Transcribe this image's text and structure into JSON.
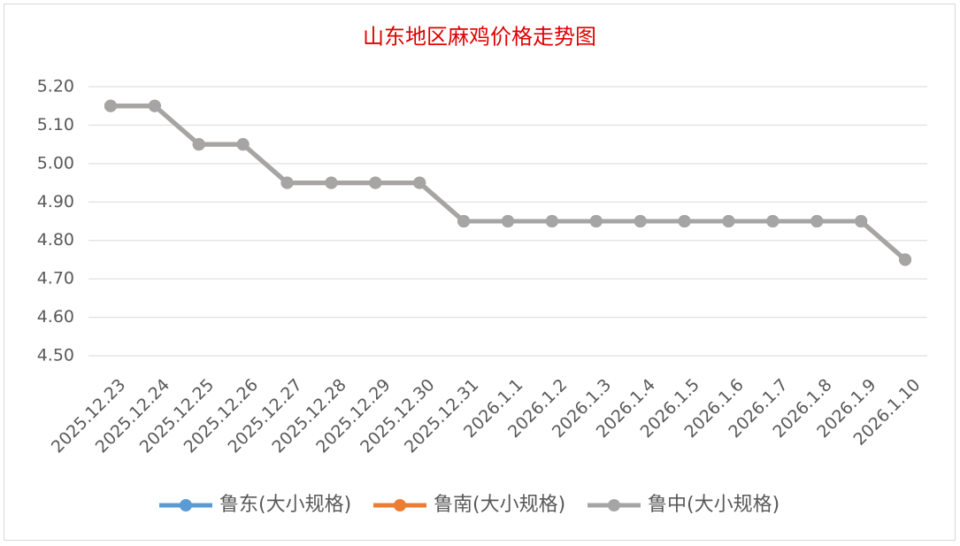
{
  "chart_data": {
    "type": "line",
    "title": "山东地区麻鸡价格走势图",
    "categories": [
      "2025.12.23",
      "2025.12.24",
      "2025.12.25",
      "2025.12.26",
      "2025.12.27",
      "2025.12.28",
      "2025.12.29",
      "2025.12.30",
      "2025.12.31",
      "2026.1.1",
      "2026.1.2",
      "2026.1.3",
      "2026.1.4",
      "2026.1.5",
      "2026.1.6",
      "2026.1.7",
      "2026.1.8",
      "2026.1.9",
      "2026.1.10"
    ],
    "series": [
      {
        "name": "鲁东(大小规格)",
        "color": "#5b9bd5",
        "values": [
          5.15,
          5.15,
          5.05,
          5.05,
          4.95,
          4.95,
          4.95,
          4.95,
          4.85,
          4.85,
          4.85,
          4.85,
          4.85,
          4.85,
          4.85,
          4.85,
          4.85,
          4.85,
          4.75
        ]
      },
      {
        "name": "鲁南(大小规格)",
        "color": "#ed7d31",
        "values": [
          5.15,
          5.15,
          5.05,
          5.05,
          4.95,
          4.95,
          4.95,
          4.95,
          4.85,
          4.85,
          4.85,
          4.85,
          4.85,
          4.85,
          4.85,
          4.85,
          4.85,
          4.85,
          4.75
        ]
      },
      {
        "name": "鲁中(大小规格)",
        "color": "#a5a5a5",
        "values": [
          5.15,
          5.15,
          5.05,
          5.05,
          4.95,
          4.95,
          4.95,
          4.95,
          4.85,
          4.85,
          4.85,
          4.85,
          4.85,
          4.85,
          4.85,
          4.85,
          4.85,
          4.85,
          4.75
        ]
      }
    ],
    "ylim": [
      4.5,
      5.2
    ],
    "yticks": [
      {
        "value": 4.5,
        "label": "4.50"
      },
      {
        "value": 4.6,
        "label": "4.60"
      },
      {
        "value": 4.7,
        "label": "4.70"
      },
      {
        "value": 4.8,
        "label": "4.80"
      },
      {
        "value": 4.9,
        "label": "4.90"
      },
      {
        "value": 5.0,
        "label": "5.00"
      },
      {
        "value": 5.1,
        "label": "5.10"
      },
      {
        "value": 5.2,
        "label": "5.20"
      }
    ],
    "grid": true,
    "legend": "bottom"
  }
}
